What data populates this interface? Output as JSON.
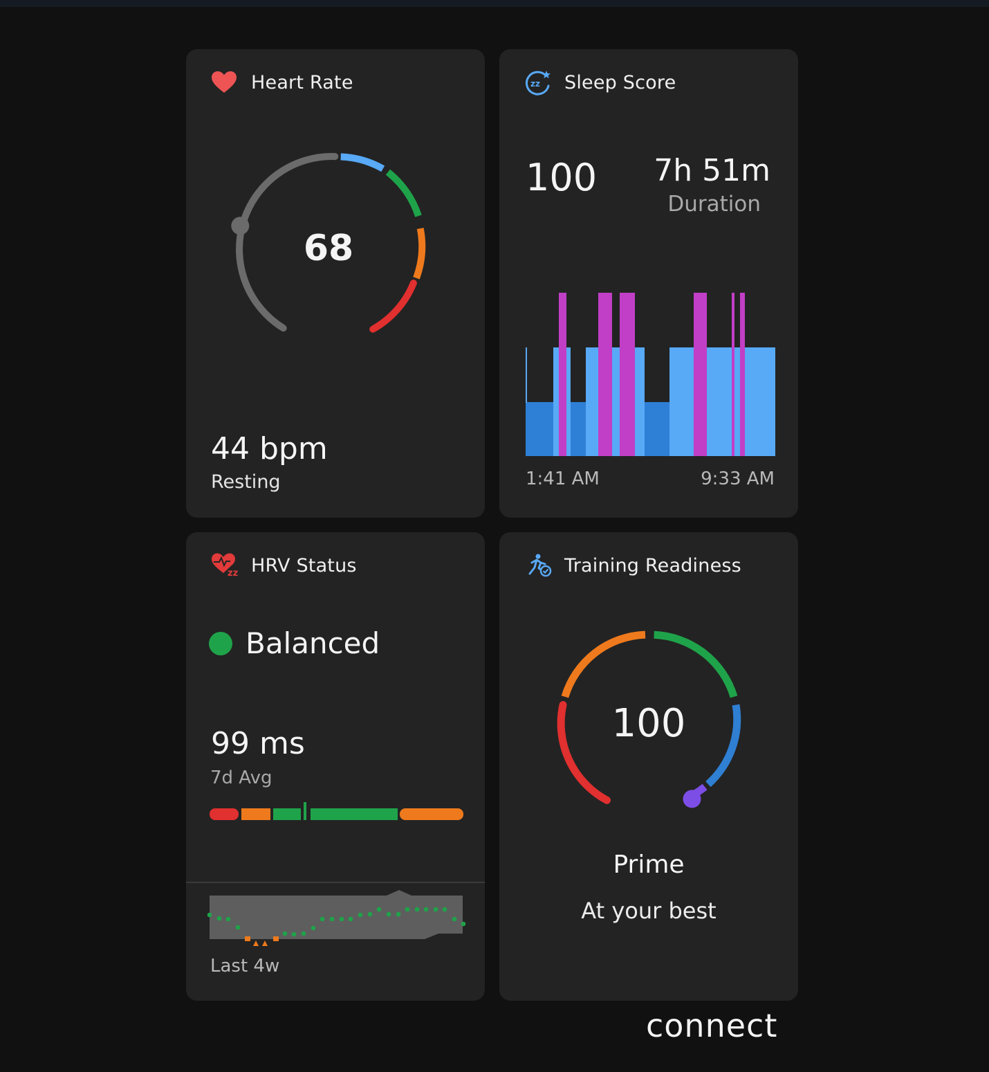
{
  "heart_rate": {
    "title": "Heart Rate",
    "icon": "heart-icon",
    "current": "68",
    "resting_value": "44 bpm",
    "resting_label": "Resting"
  },
  "sleep": {
    "title": "Sleep Score",
    "icon": "sleep-score-icon",
    "score": "100",
    "duration_value": "7h 51m",
    "duration_label": "Duration",
    "start_time": "1:41 AM",
    "end_time": "9:33 AM",
    "stage_colors": {
      "deep": "#2e7fd6",
      "light": "#58a9f6",
      "rem": "#c13fc6",
      "awake": "#e04ce0"
    }
  },
  "hrv": {
    "title": "HRV Status",
    "icon": "hrv-heart-icon",
    "status": "Balanced",
    "status_color": "#1fa34a",
    "value": "99 ms",
    "value_label": "7d Avg",
    "range_label": "Last 4w"
  },
  "training": {
    "title": "Training Readiness",
    "icon": "training-readiness-icon",
    "score": "100",
    "level": "Prime",
    "message": "At your best"
  },
  "brand": {
    "logo": "connect"
  },
  "colors": {
    "background": "#111112",
    "card": "#232323",
    "green": "#1fa34a",
    "orange": "#ee7a1d",
    "red": "#e0302f",
    "blue": "#2f7fd3",
    "light_blue": "#58a9f6",
    "gray": "#6b6b6b",
    "purple": "#7d4ee6"
  }
}
